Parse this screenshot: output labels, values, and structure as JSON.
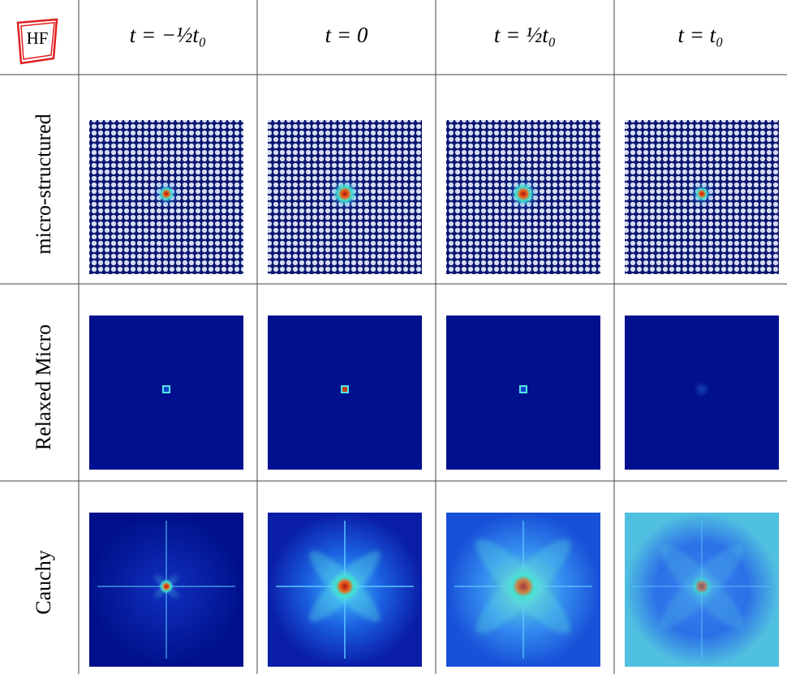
{
  "header": {
    "corner": "HF",
    "columns": [
      "t = −½t₀",
      "t = 0",
      "t = ½t₀",
      "t = t₀"
    ]
  },
  "rows": [
    {
      "label": "micro-structured"
    },
    {
      "label": "Relaxed Micro"
    },
    {
      "label": "Cauchy"
    }
  ]
}
